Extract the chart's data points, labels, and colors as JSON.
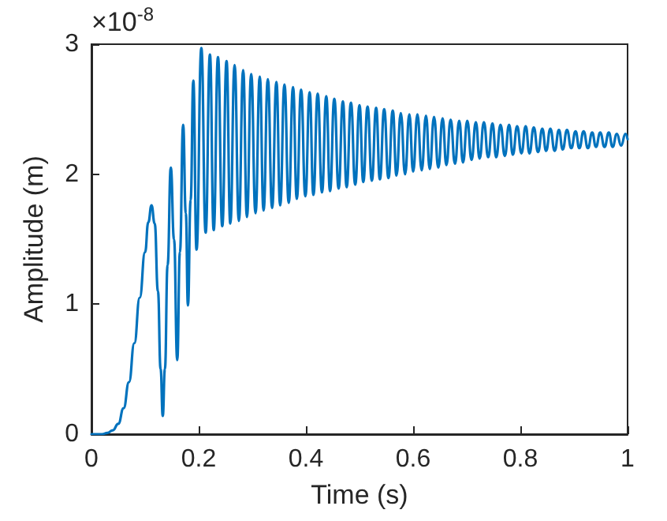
{
  "chart_data": {
    "type": "line",
    "xlabel": "Time (s)",
    "ylabel": "Amplitude (m)",
    "annotations": [
      "×10$^{-8}$"
    ],
    "xlim": [
      0,
      1
    ],
    "xticks": [
      0,
      0.2,
      0.4,
      0.6,
      0.8,
      1
    ],
    "ylim": [
      0,
      3
    ],
    "yticks": [
      0,
      1,
      2,
      3
    ],
    "grid": false,
    "marker": "none",
    "line_style": "solid",
    "series": [
      {
        "color": "#0072bd",
        "x": [
          0,
          0.02,
          0.03,
          0.04,
          0.05,
          0.06,
          0.07,
          0.08,
          0.09,
          0.1,
          0.106,
          0.112,
          0.118,
          0.124,
          0.129,
          0.133,
          0.137,
          0.142,
          0.148,
          0.154,
          0.16,
          0.165,
          0.171,
          0.176,
          0.18,
          0.185,
          0.19,
          0.196,
          0.205,
          0.213,
          0.221,
          0.228,
          0.236,
          0.244,
          0.252,
          0.259,
          0.267,
          0.275,
          0.283,
          0.29,
          0.298,
          0.306,
          0.314,
          0.321,
          0.329,
          0.337,
          0.345,
          0.352,
          0.36,
          0.368,
          0.376,
          0.383,
          0.391,
          0.399,
          0.407,
          0.414,
          0.422,
          0.43,
          0.438,
          0.445,
          0.453,
          0.461,
          0.469,
          0.476,
          0.484,
          0.492,
          0.5,
          0.507,
          0.515,
          0.523,
          0.531,
          0.538,
          0.546,
          0.554,
          0.562,
          0.569,
          0.577,
          0.585,
          0.593,
          0.6,
          0.608,
          0.616,
          0.624,
          0.631,
          0.639,
          0.647,
          0.655,
          0.662,
          0.67,
          0.678,
          0.686,
          0.693,
          0.701,
          0.709,
          0.717,
          0.724,
          0.732,
          0.74,
          0.748,
          0.755,
          0.763,
          0.771,
          0.779,
          0.786,
          0.794,
          0.802,
          0.81,
          0.817,
          0.825,
          0.833,
          0.841,
          0.848,
          0.856,
          0.864,
          0.872,
          0.879,
          0.887,
          0.895,
          0.903,
          0.91,
          0.918,
          0.926,
          0.934,
          0.941,
          0.949,
          0.957,
          0.965,
          0.972,
          0.98,
          0.988,
          0.996,
          1
        ],
        "values": [
          0,
          0,
          0.01,
          0.03,
          0.08,
          0.2,
          0.4,
          0.7,
          1.05,
          1.4,
          1.63,
          1.76,
          1.62,
          1.1,
          0.5,
          0.14,
          0.5,
          1.3,
          2.05,
          1.5,
          0.57,
          1.4,
          2.38,
          1.7,
          0.99,
          1.8,
          2.72,
          1.42,
          2.97,
          1.55,
          2.92,
          1.57,
          2.9,
          1.6,
          2.87,
          1.62,
          2.84,
          1.64,
          2.8,
          1.67,
          2.77,
          1.7,
          2.75,
          1.72,
          2.73,
          1.74,
          2.71,
          1.76,
          2.69,
          1.78,
          2.67,
          1.81,
          2.65,
          1.83,
          2.63,
          1.84,
          2.62,
          1.86,
          2.6,
          1.87,
          2.58,
          1.89,
          2.56,
          1.9,
          2.55,
          1.92,
          2.53,
          1.94,
          2.52,
          1.95,
          2.51,
          1.96,
          2.5,
          1.97,
          2.49,
          1.99,
          2.47,
          2,
          2.46,
          2.02,
          2.46,
          2.03,
          2.45,
          2.04,
          2.44,
          2.05,
          2.43,
          2.07,
          2.42,
          2.08,
          2.41,
          2.09,
          2.41,
          2.11,
          2.4,
          2.12,
          2.4,
          2.13,
          2.39,
          2.13,
          2.38,
          2.14,
          2.38,
          2.15,
          2.37,
          2.16,
          2.37,
          2.16,
          2.36,
          2.17,
          2.35,
          2.18,
          2.35,
          2.18,
          2.34,
          2.19,
          2.34,
          2.2,
          2.33,
          2.2,
          2.33,
          2.2,
          2.32,
          2.21,
          2.32,
          2.21,
          2.32,
          2.21,
          2.31,
          2.22,
          2.31,
          2.27
        ]
      }
    ]
  }
}
